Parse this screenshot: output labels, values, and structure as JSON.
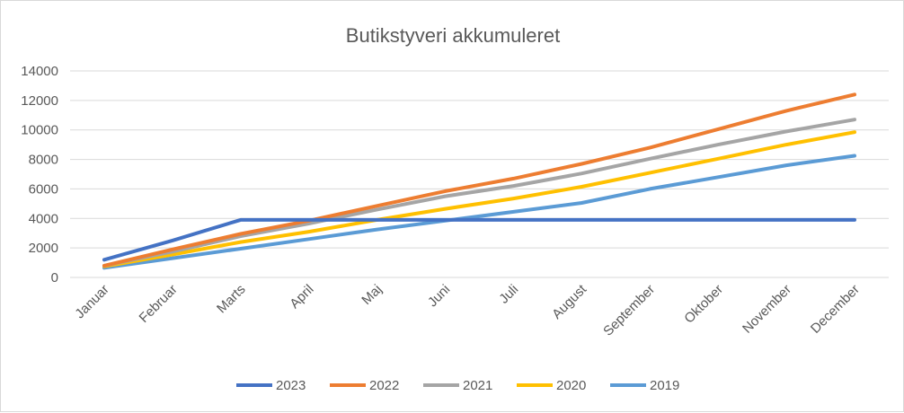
{
  "chart_data": {
    "type": "line",
    "title": "Butikstyveri akkumuleret",
    "xlabel": "",
    "ylabel": "",
    "categories": [
      "Januar",
      "Februar",
      "Marts",
      "April",
      "Maj",
      "Juni",
      "Juli",
      "August",
      "September",
      "Oktober",
      "November",
      "December"
    ],
    "ylim": [
      0,
      14000
    ],
    "yticks": [
      0,
      2000,
      4000,
      6000,
      8000,
      10000,
      12000,
      14000
    ],
    "grid": true,
    "legend_position": "bottom",
    "series": [
      {
        "name": "2023",
        "color": "#4472C4",
        "values": [
          1200,
          2500,
          3900,
          3900,
          3900,
          3900,
          3900,
          3900,
          3900,
          3900,
          3900,
          3900
        ]
      },
      {
        "name": "2022",
        "color": "#ED7D31",
        "values": [
          800,
          1900,
          2950,
          3850,
          4850,
          5850,
          6700,
          7700,
          8800,
          10050,
          11300,
          12400
        ]
      },
      {
        "name": "2021",
        "color": "#A5A5A5",
        "values": [
          800,
          1750,
          2800,
          3650,
          4600,
          5500,
          6200,
          7050,
          8050,
          9000,
          9900,
          10700
        ]
      },
      {
        "name": "2020",
        "color": "#FFC000",
        "values": [
          750,
          1550,
          2400,
          3100,
          3900,
          4650,
          5350,
          6150,
          7100,
          8050,
          9000,
          9850
        ]
      },
      {
        "name": "2019",
        "color": "#5B9BD5",
        "values": [
          650,
          1300,
          1950,
          2600,
          3250,
          3850,
          4450,
          5050,
          6000,
          6800,
          7600,
          8250
        ]
      }
    ]
  }
}
